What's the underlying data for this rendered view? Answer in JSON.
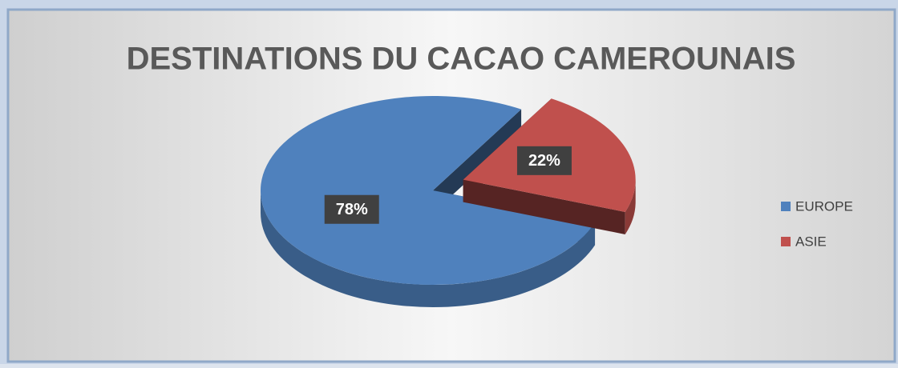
{
  "chart_data": {
    "type": "pie3d",
    "title": "DESTINATIONS DU CACAO CAMEROUNAIS",
    "categories": [
      "EUROPE",
      "ASIE"
    ],
    "values": [
      78,
      22
    ],
    "value_labels": [
      "78%",
      "22%"
    ],
    "colors": [
      "#4f81bd",
      "#c0504d"
    ],
    "legend": "right"
  }
}
